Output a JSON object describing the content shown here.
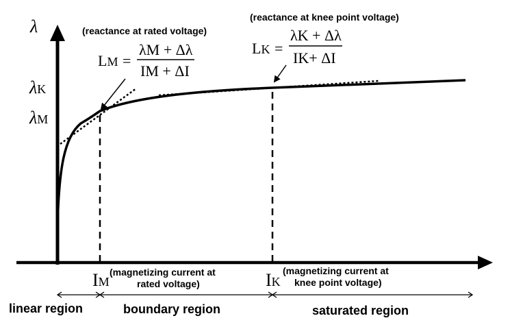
{
  "axes": {
    "y_label": "λ",
    "y_ticks": {
      "knee": {
        "main": "λ",
        "sub": "K"
      },
      "rated": {
        "main": "λ",
        "sub": "M"
      }
    },
    "x_ticks": {
      "rated": {
        "main": "I",
        "sub": "M"
      },
      "knee": {
        "main": "I",
        "sub": "K"
      }
    }
  },
  "notes": {
    "rated_reactance": "(reactance at rated voltage)",
    "knee_reactance": "(reactance at knee point voltage)",
    "rated_current": [
      "(magnetizing current at",
      "rated voltage)"
    ],
    "knee_current": [
      "(magnetizing current at",
      "knee point voltage)"
    ]
  },
  "formulas": {
    "rated": {
      "lhs": "L",
      "lhs_sub": "M",
      "eq": "=",
      "numerator": "λM + Δλ",
      "denominator": "IM + ΔI"
    },
    "knee": {
      "lhs": "L",
      "lhs_sub": "K",
      "eq": "=",
      "numerator": "λK + Δλ",
      "denominator": "IK+ ΔI"
    }
  },
  "regions": {
    "linear": "linear region",
    "boundary": "boundary region",
    "saturated": "saturated region"
  }
}
